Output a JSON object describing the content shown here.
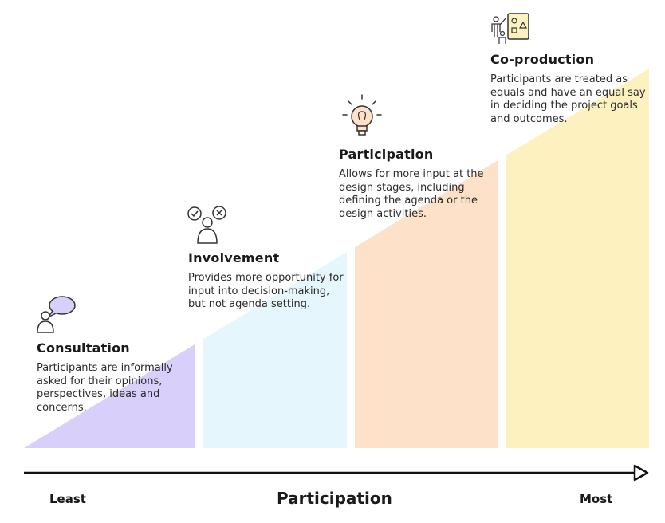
{
  "stages": [
    {
      "title": "Consultation",
      "description": "Participants are informally asked for their opinions, perspectives, ideas and concerns.",
      "icon": "speech-bubble-person-icon",
      "color": "#d9cffb"
    },
    {
      "title": "Involvement",
      "description": "Provides more opportunity for input into decision-making, but not agenda setting.",
      "icon": "person-approve-reject-icon",
      "color": "#e6f6fd"
    },
    {
      "title": "Participation",
      "description": "Allows for more input at the design stages, including defining the agenda or the design activities.",
      "icon": "lightbulb-icon",
      "color": "#fde2c9"
    },
    {
      "title": "Co-production",
      "description": "Participants are treated as equals and have an equal say in deciding the project goals and outcomes.",
      "icon": "people-board-icon",
      "color": "#fdf1bf"
    }
  ],
  "axis": {
    "title": "Participation",
    "start_label": "Least",
    "end_label": "Most"
  }
}
